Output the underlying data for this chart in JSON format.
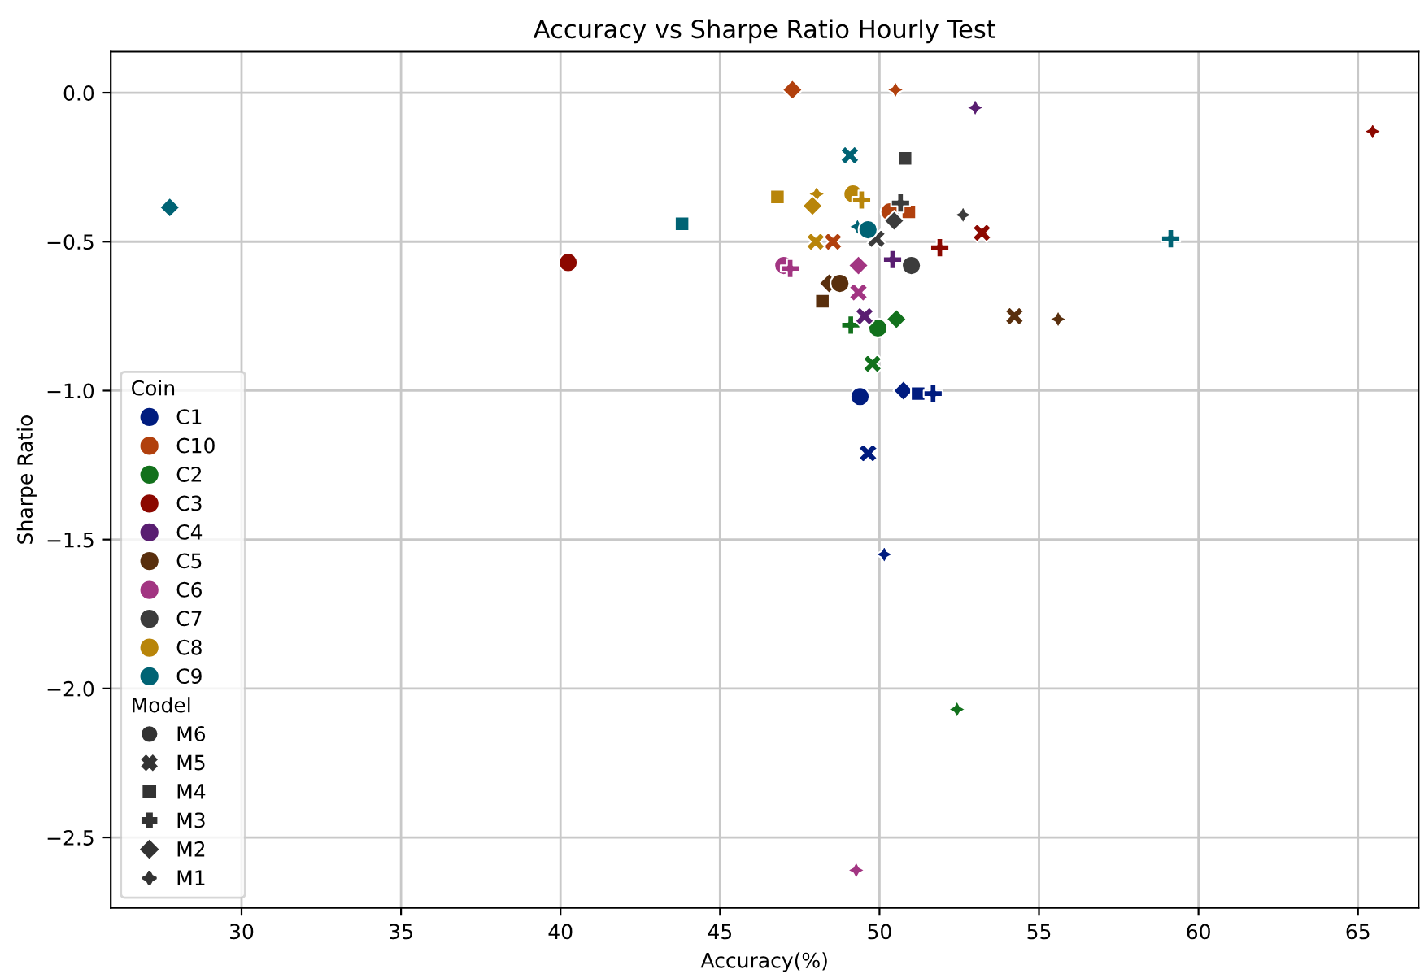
{
  "chart_data": {
    "type": "scatter",
    "title": "Accuracy vs Sharpe Ratio Hourly Test",
    "xlabel": "Accuracy(%)",
    "ylabel": "Sharpe Ratio",
    "xlim": [
      25.9,
      66.9
    ],
    "ylim": [
      -2.736,
      0.138
    ],
    "xticks": [
      30,
      35,
      40,
      45,
      50,
      55,
      60,
      65
    ],
    "yticks": [
      {
        "value": 0,
        "label": "0.0"
      },
      {
        "value": -0.5,
        "label": "−0.5"
      },
      {
        "value": -1,
        "label": "−1.0"
      },
      {
        "value": -1.5,
        "label": "−1.5"
      },
      {
        "value": -2,
        "label": "−2.0"
      },
      {
        "value": -2.5,
        "label": "−2.5"
      }
    ],
    "grid": true,
    "legend": "bottom left",
    "legend_title": [
      "Coin",
      "Model"
    ],
    "series": [
      {
        "name": "C1",
        "color": "#001c7f",
        "x": [
          49.39,
          50.75,
          51.21,
          51.68,
          49.64,
          50.15
        ],
        "values": [
          -1.02,
          -1.0,
          -1.01,
          -1.01,
          -1.21,
          -1.55
        ],
        "marker": [
          "circle",
          "diamond",
          "square",
          "plus",
          "cross",
          "star"
        ]
      },
      {
        "name": "C10",
        "color": "#b1400d",
        "x": [
          47.27,
          50.5,
          50.33,
          50.92,
          48.54
        ],
        "values": [
          0.01,
          0.01,
          -0.4,
          -0.4,
          -0.5
        ],
        "marker": [
          "diamond",
          "star",
          "circle",
          "square",
          "cross"
        ]
      },
      {
        "name": "C2",
        "color": "#12711c",
        "x": [
          49.1,
          49.95,
          50.53,
          49.78,
          52.43
        ],
        "values": [
          -0.78,
          -0.79,
          -0.76,
          -0.91,
          -2.07
        ],
        "marker": [
          "plus",
          "circle",
          "diamond",
          "cross",
          "star"
        ]
      },
      {
        "name": "C3",
        "color": "#8c0800",
        "x": [
          40.24,
          53.21,
          51.89,
          65.46
        ],
        "values": [
          -0.57,
          -0.47,
          -0.52,
          -0.13
        ],
        "marker": [
          "circle",
          "cross",
          "plus",
          "star"
        ]
      },
      {
        "name": "C4",
        "color": "#591e71",
        "x": [
          53.0,
          50.41,
          49.53
        ],
        "values": [
          -0.05,
          -0.56,
          -0.75
        ],
        "marker": [
          "star",
          "plus",
          "cross"
        ]
      },
      {
        "name": "C5",
        "color": "#592f0d",
        "x": [
          48.42,
          48.76,
          48.21,
          54.23,
          55.6
        ],
        "values": [
          -0.64,
          -0.64,
          -0.7,
          -0.75,
          -0.76
        ],
        "marker": [
          "diamond",
          "circle",
          "square",
          "cross",
          "star"
        ]
      },
      {
        "name": "C6",
        "color": "#a23582",
        "x": [
          47.0,
          47.2,
          49.34,
          49.34,
          49.27
        ],
        "values": [
          -0.58,
          -0.59,
          -0.58,
          -0.67,
          -2.61
        ],
        "marker": [
          "circle",
          "plus",
          "diamond",
          "cross",
          "star"
        ]
      },
      {
        "name": "C7",
        "color": "#3c3c3c",
        "x": [
          50.8,
          50.66,
          50.46,
          52.62,
          49.9,
          51.0
        ],
        "values": [
          -0.22,
          -0.37,
          -0.43,
          -0.41,
          -0.49,
          -0.58
        ],
        "marker": [
          "square",
          "plus",
          "diamond",
          "star",
          "cross",
          "circle"
        ]
      },
      {
        "name": "C8",
        "color": "#b8850a",
        "x": [
          46.8,
          48.03,
          47.9,
          49.17,
          49.44,
          48.0
        ],
        "values": [
          -0.35,
          -0.34,
          -0.38,
          -0.34,
          -0.36,
          -0.5
        ],
        "marker": [
          "square",
          "star",
          "diamond",
          "circle",
          "plus",
          "cross"
        ]
      },
      {
        "name": "C9",
        "color": "#006374",
        "x": [
          49.07,
          49.31,
          49.64,
          27.75,
          43.81,
          59.13
        ],
        "values": [
          -0.21,
          -0.45,
          -0.46,
          -0.385,
          -0.44,
          -0.49
        ],
        "marker": [
          "cross",
          "star",
          "circle",
          "diamond",
          "square",
          "plus"
        ]
      },
      {
        "name": "M6",
        "color": "#333333",
        "marker": "circle"
      },
      {
        "name": "M5",
        "color": "#333333",
        "marker": "cross"
      },
      {
        "name": "M4",
        "color": "#333333",
        "marker": "square"
      },
      {
        "name": "M3",
        "color": "#333333",
        "marker": "plus"
      },
      {
        "name": "M2",
        "color": "#333333",
        "marker": "diamond"
      },
      {
        "name": "M1",
        "color": "#333333",
        "marker": "star"
      }
    ]
  }
}
